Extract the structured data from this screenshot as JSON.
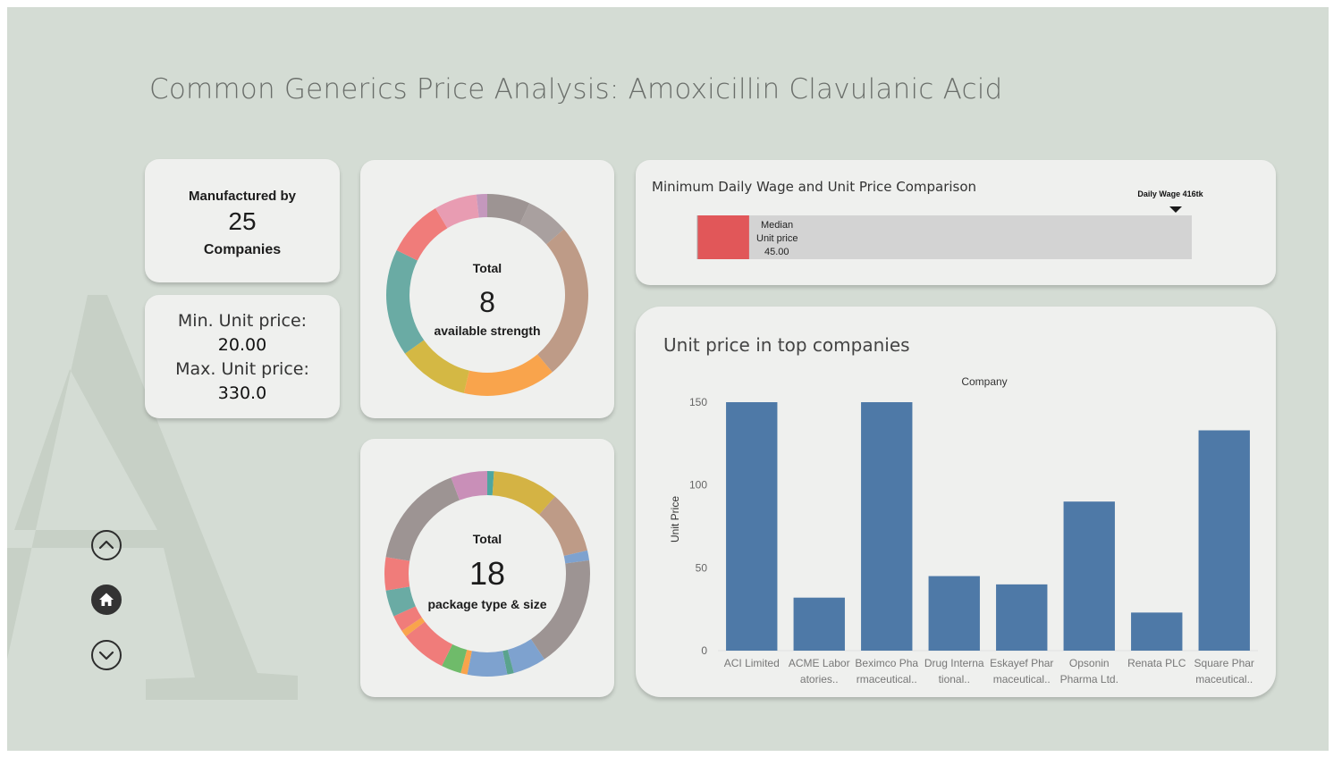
{
  "page": {
    "title": "Common Generics Price Analysis: Amoxicillin Clavulanic Acid"
  },
  "companies_card": {
    "line1": "Manufactured by",
    "count": "25",
    "line2": "Companies"
  },
  "price_card": {
    "min_label": "Min. Unit price:",
    "min_value": "20.00",
    "max_label": "Max. Unit price:",
    "max_value": "330.0"
  },
  "strength_donut": {
    "label_top": "Total",
    "value": "8",
    "label_bottom": "available strength"
  },
  "package_donut": {
    "label_top": "Total",
    "value": "18",
    "label_bottom": "package type & size"
  },
  "wage_panel": {
    "title": "Minimum Daily Wage and Unit Price Comparison",
    "marker_label": "Daily Wage 416tk",
    "median_line1": "Median",
    "median_line2": "Unit price",
    "median_value": "45.00"
  },
  "bar_panel": {
    "title": "Unit price in top companies"
  },
  "nav": {
    "up_icon": "chevron-up-icon",
    "home_icon": "home-icon",
    "down_icon": "chevron-down-icon"
  },
  "colors": {
    "background": "#d4dcd4",
    "card": "#eff0ee",
    "bar": "#4e79a7",
    "median_bar": "#e15759",
    "wage_track": "#d3d3d3"
  },
  "chart_data": [
    {
      "type": "pie",
      "variant": "donut",
      "segments": [
        {
          "value": 6,
          "color": "#9d9493"
        },
        {
          "value": 6,
          "color": "#a9a09f"
        },
        {
          "value": 22,
          "color": "#be9b87"
        },
        {
          "value": 13,
          "color": "#f9a44c"
        },
        {
          "value": 10,
          "color": "#d4b844"
        },
        {
          "value": 15,
          "color": "#6aaba4"
        },
        {
          "value": 8,
          "color": "#f07c7a"
        },
        {
          "value": 6,
          "color": "#e89cb2"
        },
        {
          "value": 1.5,
          "color": "#c498bd"
        }
      ]
    },
    {
      "type": "pie",
      "variant": "donut",
      "segments": [
        {
          "value": 1,
          "color": "#4ea6a0"
        },
        {
          "value": 10,
          "color": "#d4b344"
        },
        {
          "value": 9.5,
          "color": "#be9b87"
        },
        {
          "value": 1.5,
          "color": "#7ea2cf"
        },
        {
          "value": 17,
          "color": "#9d9493"
        },
        {
          "value": 5,
          "color": "#7ea2cf"
        },
        {
          "value": 1,
          "color": "#5aa38e"
        },
        {
          "value": 6,
          "color": "#7ea2cf"
        },
        {
          "value": 1,
          "color": "#f9a44c"
        },
        {
          "value": 3,
          "color": "#6fbb6a"
        },
        {
          "value": 7,
          "color": "#f07c7a"
        },
        {
          "value": 1,
          "color": "#f9a44c"
        },
        {
          "value": 2.5,
          "color": "#f07c7a"
        },
        {
          "value": 4,
          "color": "#6aaba4"
        },
        {
          "value": 5,
          "color": "#f07c7a"
        },
        {
          "value": 16,
          "color": "#9d9493"
        },
        {
          "value": 5.5,
          "color": "#c98fb8"
        }
      ]
    },
    {
      "type": "bar",
      "orientation": "horizontal",
      "categories": [
        "Median Unit price"
      ],
      "values": [
        45
      ],
      "reference_line": {
        "label": "Daily Wage 416tk",
        "value": 416
      },
      "xlim": [
        0,
        430
      ]
    },
    {
      "type": "bar",
      "title": "Unit price in top companies",
      "xlabel": "Company",
      "ylabel": "Unit Price",
      "categories": [
        [
          "ACI Limited",
          ""
        ],
        [
          "ACME Labor",
          "atories.."
        ],
        [
          "Beximco Pha",
          "rmaceutical.."
        ],
        [
          "Drug Interna",
          "tional.."
        ],
        [
          "Eskayef Phar",
          "maceutical.."
        ],
        [
          "Opsonin",
          "Pharma Ltd."
        ],
        [
          "Renata PLC",
          ""
        ],
        [
          "Square Phar",
          "maceutical.."
        ]
      ],
      "values": [
        150,
        32,
        150,
        45,
        40,
        90,
        23,
        133
      ],
      "yticks": [
        "0",
        "50",
        "100",
        "150"
      ],
      "ylim": [
        0,
        150
      ],
      "grid": false
    }
  ]
}
